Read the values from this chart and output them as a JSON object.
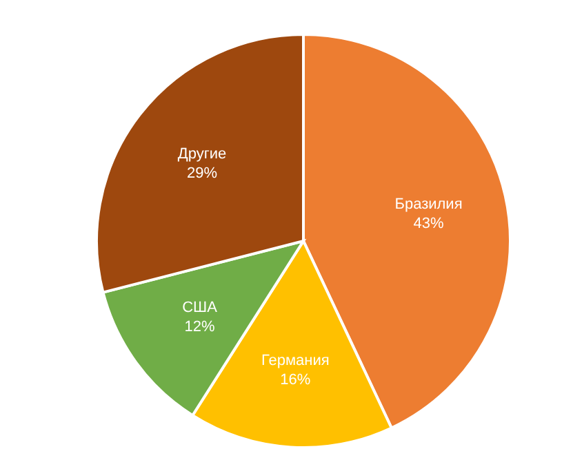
{
  "chart_data": {
    "type": "pie",
    "categories": [
      "Бразилия",
      "Германия",
      "США",
      "Другие"
    ],
    "values": [
      43,
      16,
      12,
      29
    ],
    "colors": [
      "#ed7d31",
      "#ffc000",
      "#70ad47",
      "#9e480e"
    ],
    "value_labels": [
      "43%",
      "16%",
      "12%",
      "29%"
    ],
    "legend": false
  }
}
